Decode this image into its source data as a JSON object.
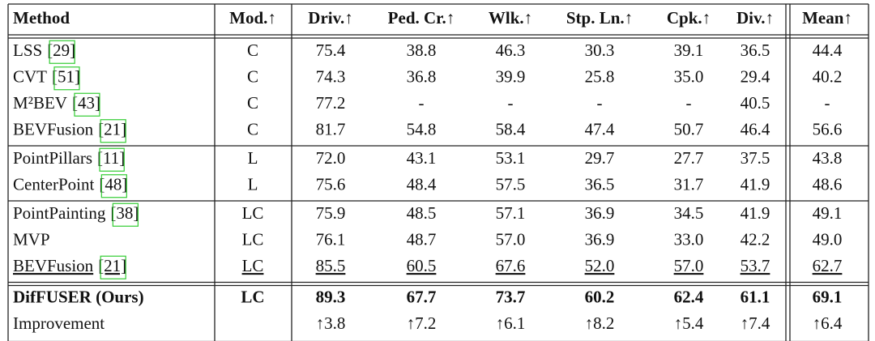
{
  "table": {
    "header": [
      "Method",
      "Mod.↑",
      "Driv.↑",
      "Ped. Cr.↑",
      "Wlk.↑",
      "Stp. Ln.↑",
      "Cpk.↑",
      "Div.↑",
      "Mean↑"
    ],
    "groups": [
      {
        "rows": [
          {
            "method": "LSS",
            "cite": "[29]",
            "modality": "C",
            "values": [
              "75.4",
              "38.8",
              "46.3",
              "30.3",
              "39.1",
              "36.5",
              "44.4"
            ]
          },
          {
            "method": "CVT",
            "cite": "[51]",
            "modality": "C",
            "values": [
              "74.3",
              "36.8",
              "39.9",
              "25.8",
              "35.0",
              "29.4",
              "40.2"
            ]
          },
          {
            "method": "M²BEV",
            "cite": "[43]",
            "modality": "C",
            "values": [
              "77.2",
              "-",
              "-",
              "-",
              "-",
              "40.5",
              "-"
            ]
          },
          {
            "method": "BEVFusion",
            "cite": "[21]",
            "modality": "C",
            "values": [
              "81.7",
              "54.8",
              "58.4",
              "47.4",
              "50.7",
              "46.4",
              "56.6"
            ]
          }
        ]
      },
      {
        "rows": [
          {
            "method": "PointPillars",
            "cite": "[11]",
            "modality": "L",
            "values": [
              "72.0",
              "43.1",
              "53.1",
              "29.7",
              "27.7",
              "37.5",
              "43.8"
            ]
          },
          {
            "method": "CenterPoint",
            "cite": "[48]",
            "modality": "L",
            "values": [
              "75.6",
              "48.4",
              "57.5",
              "36.5",
              "31.7",
              "41.9",
              "48.6"
            ]
          }
        ]
      },
      {
        "rows": [
          {
            "method": "PointPainting",
            "cite": "[38]",
            "modality": "LC",
            "values": [
              "75.9",
              "48.5",
              "57.1",
              "36.9",
              "34.5",
              "41.9",
              "49.1"
            ]
          },
          {
            "method": "MVP",
            "modality": "LC",
            "values": [
              "76.1",
              "48.7",
              "57.0",
              "36.9",
              "33.0",
              "42.2",
              "49.0"
            ]
          },
          {
            "method": "BEVFusion",
            "cite": "[21]",
            "modality": "LC",
            "values": [
              "85.5",
              "60.5",
              "67.6",
              "52.0",
              "57.0",
              "53.7",
              "62.7"
            ],
            "underline": true
          }
        ]
      },
      {
        "rows": [
          {
            "method": "DifFUSER (Ours)",
            "modality": "LC",
            "values": [
              "89.3",
              "67.7",
              "73.7",
              "60.2",
              "62.4",
              "61.1",
              "69.1"
            ],
            "bold": true
          },
          {
            "method": "Improvement",
            "values": [
              "↑3.8",
              "↑7.2",
              "↑6.1",
              "↑8.2",
              "↑5.4",
              "↑7.4",
              "↑6.4"
            ]
          }
        ]
      }
    ]
  }
}
